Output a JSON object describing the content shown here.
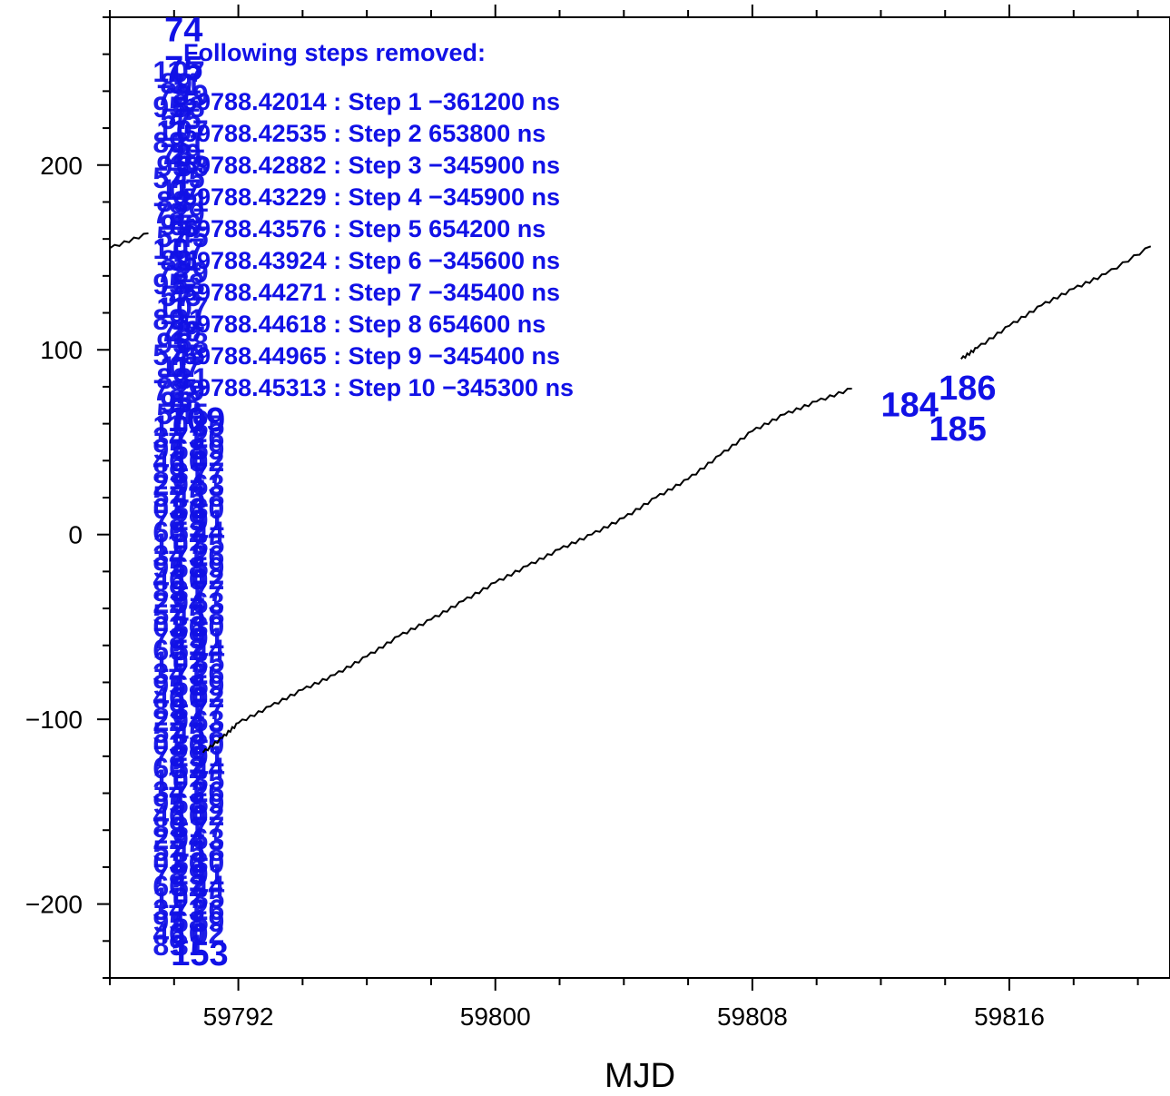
{
  "chart_data": {
    "type": "line",
    "title": "",
    "xlabel": "MJD",
    "ylabel": "",
    "xlim": [
      59788.0,
      59821.0
    ],
    "ylim": [
      -240,
      280
    ],
    "grid": false,
    "x_ticks": [
      59792,
      59800,
      59808,
      59816
    ],
    "x_tick_labels": [
      "59792",
      "59800",
      "59808",
      "59816"
    ],
    "y_ticks": [
      -200,
      -100,
      0,
      100,
      200
    ],
    "y_tick_labels": [
      "−200",
      "−100",
      "0",
      "100",
      "200"
    ],
    "series": [
      {
        "segments": [
          {
            "x": [
              59788.0,
              59789.2
            ],
            "y": [
              155,
              163
            ]
          },
          {
            "x": [
              59790.9,
              59791.5,
              59792,
              59793,
              59794,
              59795,
              59796,
              59797,
              59798,
              59799,
              59800,
              59801,
              59802,
              59803,
              59804,
              59805,
              59806,
              59807,
              59808,
              59809,
              59810,
              59811.1
            ],
            "y": [
              -118,
              -110,
              -102,
              -93,
              -84,
              -76,
              -66,
              -55,
              -46,
              -36,
              -26,
              -17,
              -8,
              0,
              9,
              20,
              30,
              43,
              56,
              65,
              72,
              79
            ]
          },
          {
            "x": [
              59814.5,
              59815,
              59816,
              59817,
              59818,
              59819,
              59820.4
            ],
            "y": [
              95,
              101,
              113,
              124,
              133,
              141,
              156
            ]
          }
        ]
      }
    ],
    "legend": {
      "heading": "Following steps removed:",
      "entries": [
        "59788.42014 : Step 1 −361200 ns",
        "59788.42535 : Step 2 653800 ns",
        "59788.42882 : Step 3 −345900 ns",
        "59788.43229 : Step 4 −345900 ns",
        "59788.43576 : Step 5 654200 ns",
        "59788.43924 : Step 6 −345600 ns",
        "59788.44271 : Step 7 −345400 ns",
        "59788.44618 : Step 8 654600 ns",
        "59788.44965 : Step 9 −345400 ns",
        "59788.45313 : Step 10 −345300 ns"
      ]
    },
    "point_labels": [
      {
        "text": "74",
        "x": 59789.7,
        "y": 267
      },
      {
        "text": "75",
        "x": 59789.7,
        "y": 246
      },
      {
        "text": "109",
        "x": 59789.8,
        "y": 56
      },
      {
        "text": "153",
        "x": 59789.9,
        "y": -233
      },
      {
        "text": "184",
        "x": 59812.0,
        "y": 64
      },
      {
        "text": "185",
        "x": 59813.5,
        "y": 51
      },
      {
        "text": "186",
        "x": 59813.8,
        "y": 73
      }
    ],
    "label_colour": "#1111e6",
    "line_colour": "#000000"
  }
}
